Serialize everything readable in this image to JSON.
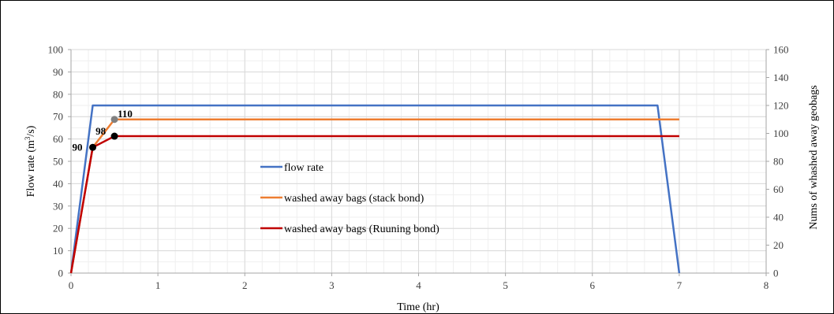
{
  "chart_data": {
    "type": "line",
    "xlabel": "Time (hr)",
    "ylabel_left_main": "Flow rate (m",
    "ylabel_left_sup": "3",
    "ylabel_left_tail": "/s)",
    "ylabel_right": "Nums of whashed away geobags",
    "xlim": [
      0,
      8
    ],
    "ylim_left": [
      0,
      100
    ],
    "ylim_right": [
      0,
      160
    ],
    "x_ticks": [
      "0",
      "1",
      "2",
      "3",
      "4",
      "5",
      "6",
      "7",
      "8"
    ],
    "y_left_ticks": [
      "0",
      "10",
      "20",
      "30",
      "40",
      "50",
      "60",
      "70",
      "80",
      "90",
      "100"
    ],
    "y_right_ticks": [
      "0",
      "20",
      "40",
      "60",
      "80",
      "100",
      "120",
      "140",
      "160"
    ],
    "grid": true,
    "legend_position": "center-left",
    "series": [
      {
        "name": "flow rate",
        "axis": "left",
        "color": "#4472C4",
        "x": [
          0,
          0.25,
          6.75,
          7
        ],
        "y": [
          0,
          75,
          75,
          0
        ]
      },
      {
        "name": "washed away bags (stack bond)",
        "axis": "right",
        "color": "#ED7D31",
        "x": [
          0,
          0.25,
          0.5,
          7
        ],
        "y": [
          0,
          90,
          110,
          110
        ]
      },
      {
        "name": "washed away bags (Ruuning bond)",
        "axis": "right",
        "color": "#C00000",
        "x": [
          0,
          0.25,
          0.5,
          7
        ],
        "y": [
          0,
          90,
          98,
          98
        ]
      }
    ],
    "annotations": [
      {
        "label": "90",
        "x": 0.25,
        "y": 90,
        "axis": "right",
        "color": "#000000"
      },
      {
        "label": "98",
        "x": 0.5,
        "y": 98,
        "axis": "right",
        "color": "#000000"
      },
      {
        "label": "110",
        "x": 0.5,
        "y": 110,
        "axis": "right",
        "color": "#808080"
      }
    ]
  }
}
